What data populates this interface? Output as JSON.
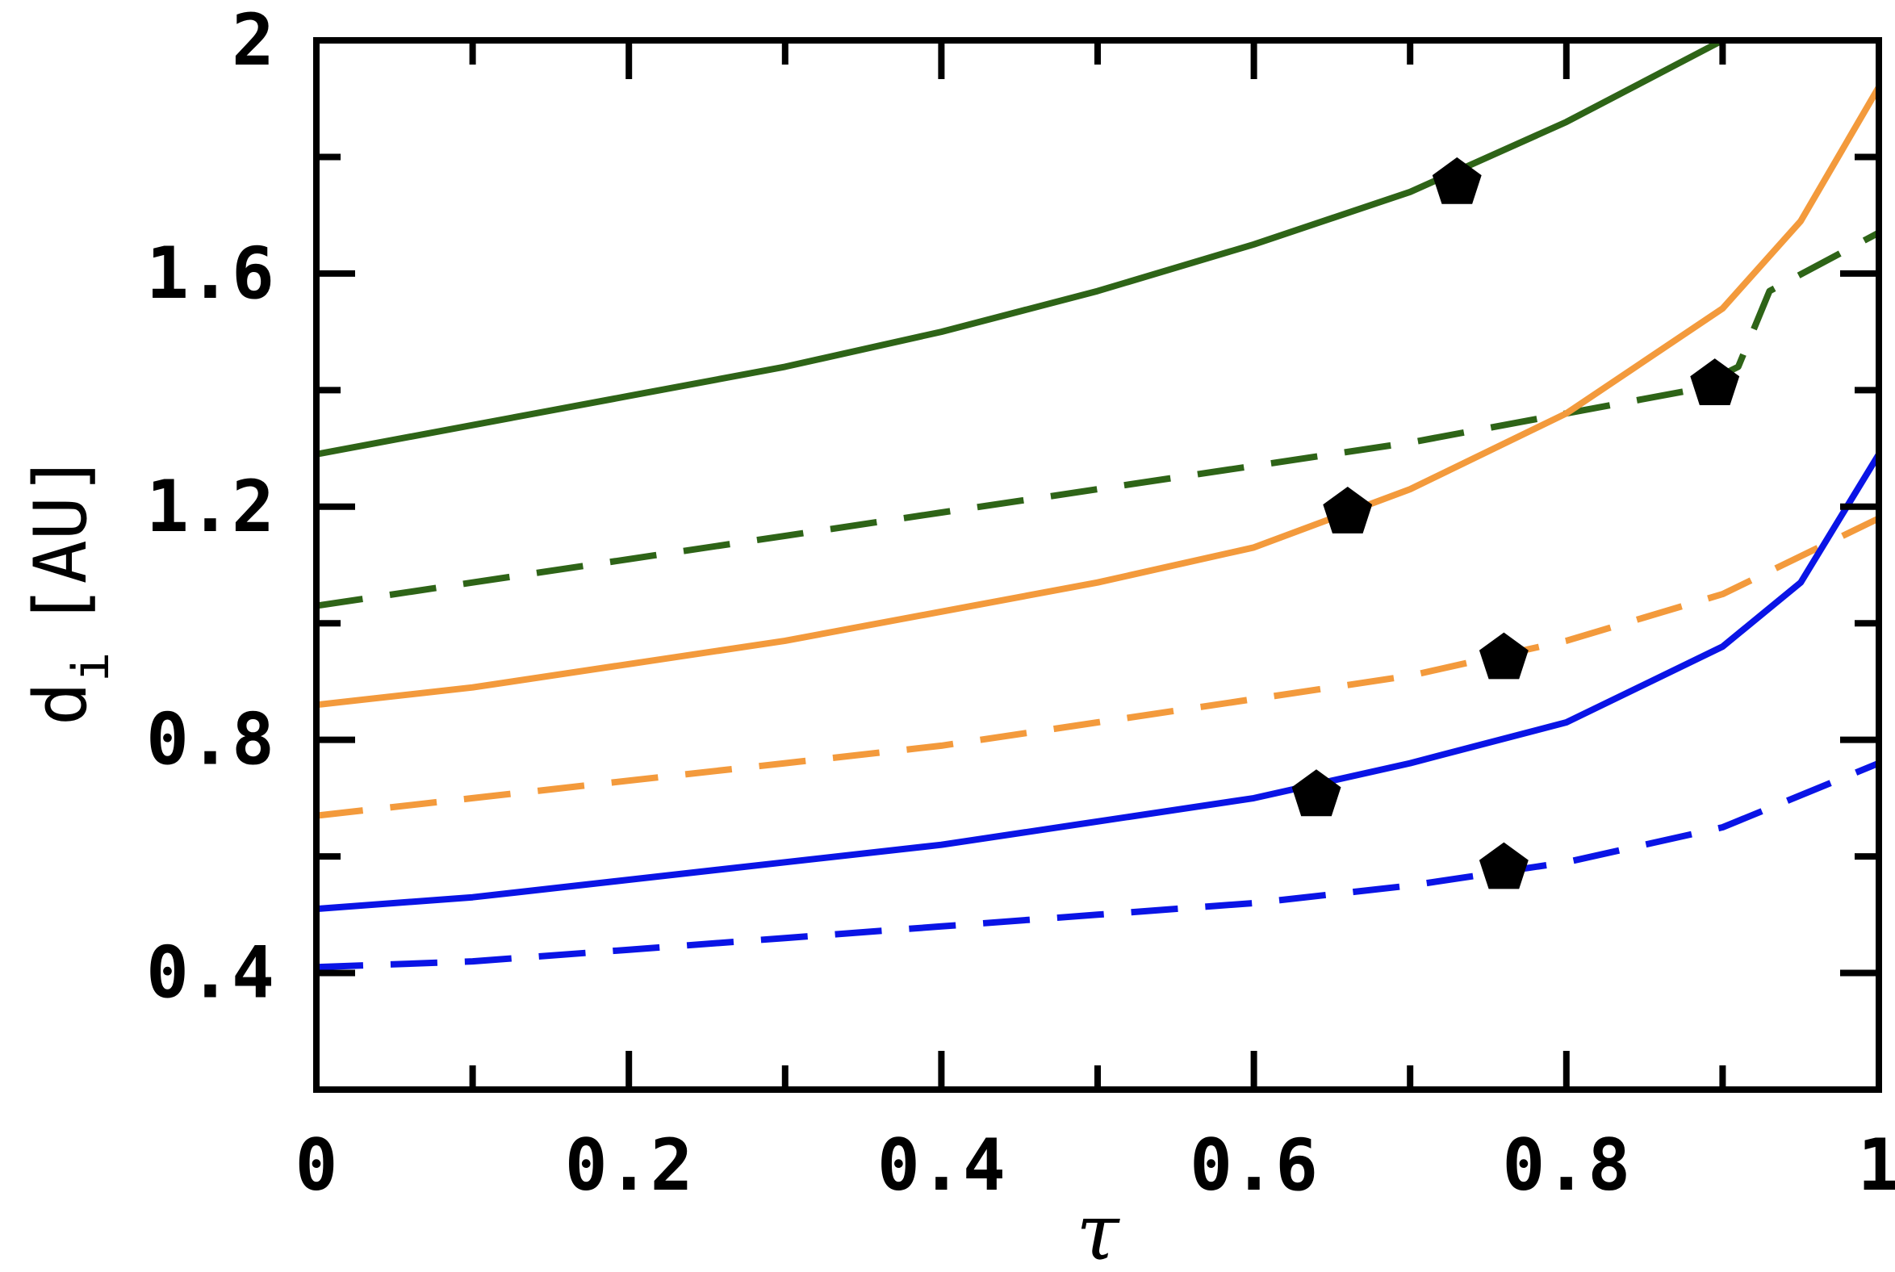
{
  "chart_data": {
    "type": "line",
    "title": "",
    "xlabel": "τ",
    "ylabel_main": "d",
    "ylabel_sub": "i",
    "ylabel_unit": "[AU]",
    "xlim": [
      0,
      1
    ],
    "ylim": [
      0.2,
      2.0
    ],
    "x_ticks": [
      0,
      0.2,
      0.4,
      0.6,
      0.8,
      1
    ],
    "x_tick_labels": [
      "0",
      "0.2",
      "0.4",
      "0.6",
      "0.8",
      "1"
    ],
    "x_minor_ticks": [
      0.1,
      0.3,
      0.5,
      0.7,
      0.9
    ],
    "y_ticks": [
      0.4,
      0.8,
      1.2,
      1.6,
      2.0
    ],
    "y_tick_labels": [
      "0.4",
      "0.8",
      "1.2",
      "1.6",
      "2"
    ],
    "y_minor_ticks": [
      0.6,
      1.0,
      1.4,
      1.8
    ],
    "grid": false,
    "legend": "none",
    "series": [
      {
        "color": "#2e6417",
        "style": "solid",
        "x": [
          0,
          0.1,
          0.2,
          0.3,
          0.4,
          0.5,
          0.6,
          0.7,
          0.8,
          0.9
        ],
        "y": [
          1.29,
          1.34,
          1.39,
          1.44,
          1.5,
          1.57,
          1.65,
          1.74,
          1.86,
          2.0
        ],
        "marker": {
          "x": 0.73,
          "y": 1.755
        }
      },
      {
        "color": "#2e6417",
        "style": "dashed",
        "x": [
          0,
          0.1,
          0.2,
          0.3,
          0.4,
          0.5,
          0.6,
          0.7,
          0.8,
          0.88,
          0.91,
          0.93,
          1.0
        ],
        "y": [
          1.03,
          1.07,
          1.11,
          1.15,
          1.19,
          1.23,
          1.27,
          1.31,
          1.36,
          1.4,
          1.44,
          1.57,
          1.67
        ],
        "marker": {
          "x": 0.895,
          "y": 1.41
        }
      },
      {
        "color": "#f39a3c",
        "style": "solid",
        "x": [
          0,
          0.1,
          0.2,
          0.3,
          0.4,
          0.5,
          0.6,
          0.7,
          0.8,
          0.9,
          0.95,
          1.0
        ],
        "y": [
          0.86,
          0.89,
          0.93,
          0.97,
          1.02,
          1.07,
          1.13,
          1.23,
          1.36,
          1.54,
          1.69,
          1.92
        ],
        "marker": {
          "x": 0.66,
          "y": 1.19
        }
      },
      {
        "color": "#f39a3c",
        "style": "dashed",
        "x": [
          0,
          0.1,
          0.2,
          0.3,
          0.4,
          0.5,
          0.6,
          0.7,
          0.8,
          0.9,
          1.0
        ],
        "y": [
          0.67,
          0.7,
          0.73,
          0.76,
          0.79,
          0.83,
          0.87,
          0.91,
          0.97,
          1.05,
          1.18
        ],
        "marker": {
          "x": 0.76,
          "y": 0.94
        }
      },
      {
        "color": "#0a14e6",
        "style": "solid",
        "x": [
          0,
          0.1,
          0.2,
          0.3,
          0.4,
          0.5,
          0.6,
          0.7,
          0.8,
          0.9,
          0.95,
          1.0
        ],
        "y": [
          0.51,
          0.53,
          0.56,
          0.59,
          0.62,
          0.66,
          0.7,
          0.76,
          0.83,
          0.96,
          1.07,
          1.29
        ],
        "marker": {
          "x": 0.64,
          "y": 0.705
        }
      },
      {
        "color": "#0a14e6",
        "style": "dashed",
        "x": [
          0,
          0.1,
          0.2,
          0.3,
          0.4,
          0.5,
          0.6,
          0.7,
          0.8,
          0.9,
          1.0
        ],
        "y": [
          0.41,
          0.42,
          0.44,
          0.46,
          0.48,
          0.5,
          0.52,
          0.55,
          0.59,
          0.65,
          0.76
        ],
        "marker": {
          "x": 0.76,
          "y": 0.58
        }
      }
    ]
  }
}
